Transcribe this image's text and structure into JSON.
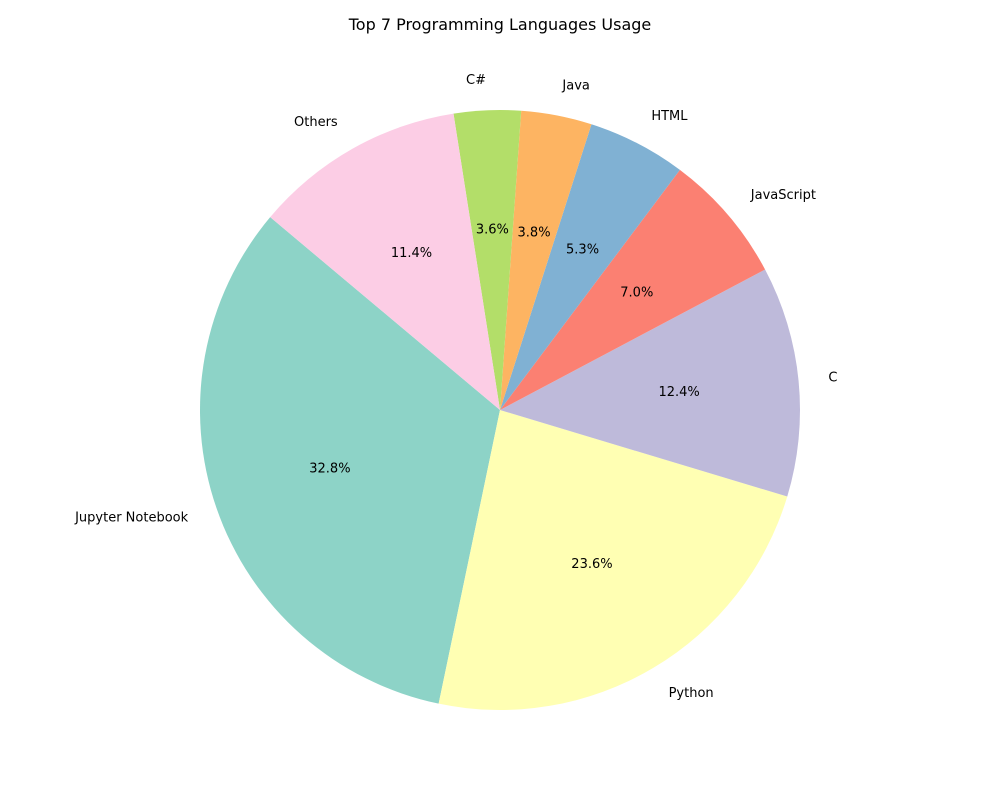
{
  "chart_data": {
    "type": "pie",
    "title": "Top 7 Programming Languages Usage",
    "slices": [
      {
        "label": "Jupyter Notebook",
        "value": 32.8,
        "pct_label": "32.8%",
        "color": "#8dd3c7"
      },
      {
        "label": "Python",
        "value": 23.6,
        "pct_label": "23.6%",
        "color": "#ffffb3"
      },
      {
        "label": "C",
        "value": 12.4,
        "pct_label": "12.4%",
        "color": "#bebada"
      },
      {
        "label": "JavaScript",
        "value": 7.0,
        "pct_label": "7.0%",
        "color": "#fb8072"
      },
      {
        "label": "HTML",
        "value": 5.3,
        "pct_label": "5.3%",
        "color": "#80b1d3"
      },
      {
        "label": "Java",
        "value": 3.8,
        "pct_label": "3.8%",
        "color": "#fdb462"
      },
      {
        "label": "C#",
        "value": 3.6,
        "pct_label": "3.6%",
        "color": "#b3de69"
      },
      {
        "label": "Others",
        "value": 11.4,
        "pct_label": "11.4%",
        "color": "#fccde5"
      }
    ]
  }
}
